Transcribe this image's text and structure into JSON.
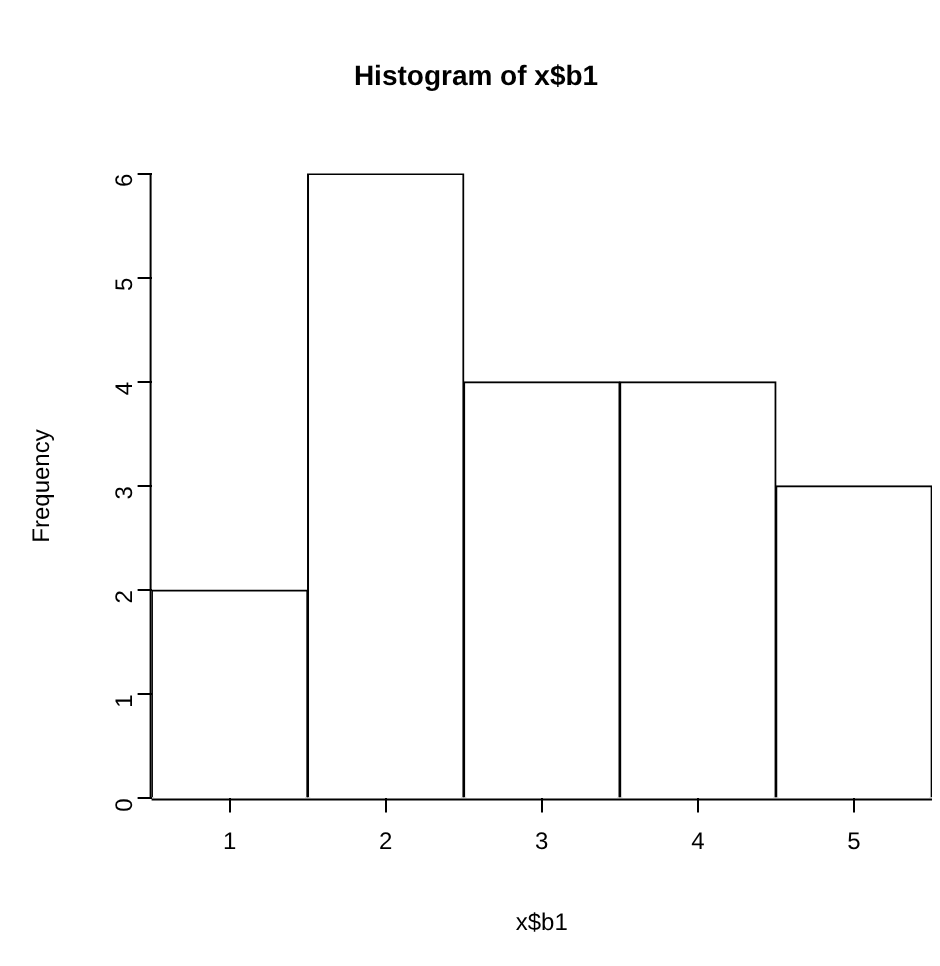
{
  "chart_data": {
    "type": "histogram",
    "title": "Histogram of x$b1",
    "xlabel": "x$b1",
    "ylabel": "Frequency",
    "bins": [
      0.5,
      1.5,
      2.5,
      3.5,
      4.5,
      5.5
    ],
    "values": [
      2,
      6,
      4,
      4,
      3
    ],
    "color": "#ffffff",
    "xlim": [
      0.5,
      5.5
    ],
    "xticks": [
      1,
      2,
      3,
      4,
      5
    ],
    "ylim": [
      0,
      6
    ],
    "yticks": [
      0,
      1,
      2,
      3,
      4,
      5,
      6
    ]
  }
}
